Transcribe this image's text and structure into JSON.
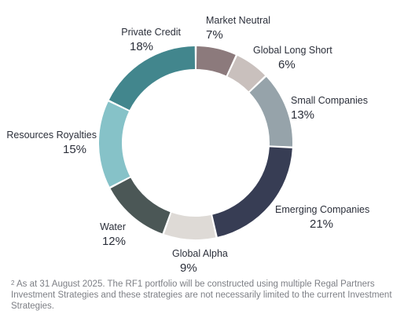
{
  "chart_data": {
    "type": "pie",
    "categories": [
      "Market Neutral",
      "Global Long Short",
      "Small Companies",
      "Emerging Companies",
      "Global Alpha",
      "Water",
      "Resources Royalties",
      "Private Credit"
    ],
    "values": [
      7,
      6,
      13,
      21,
      9,
      12,
      15,
      18
    ],
    "value_labels": [
      "7%",
      "6%",
      "13%",
      "21%",
      "9%",
      "12%",
      "15%",
      "18%"
    ],
    "colors": [
      "#8c7a7c",
      "#c9c0bd",
      "#96a3aa",
      "#373d54",
      "#dedad6",
      "#4b5756",
      "#86c2c8",
      "#42868d"
    ],
    "title": "",
    "legend": "none"
  },
  "footnote": {
    "marker": "2",
    "text": "As at 31 August 2025. The RF1 portfolio will be constructed using multiple Regal Partners Investment Strategies and these strategies are not necessarily limited to the current Investment Strategies."
  }
}
